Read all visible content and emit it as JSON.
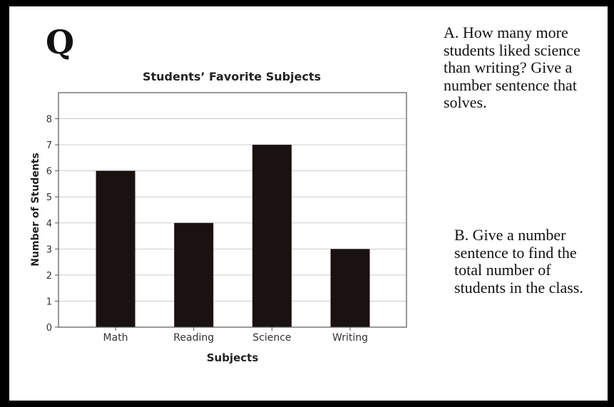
{
  "panel_letter": "Q",
  "question_a": "A.  How many more students liked science than writing?  Give a number sentence that solves.",
  "question_b": "B.  Give a number sentence to find the total number of students in the class.",
  "chart_data": {
    "type": "bar",
    "title": "Students’ Favorite Subjects",
    "xlabel": "Subjects",
    "ylabel": "Number of Students",
    "categories": [
      "Math",
      "Reading",
      "Science",
      "Writing"
    ],
    "values": [
      6,
      4,
      7,
      3
    ],
    "ylim": [
      0,
      8
    ],
    "yticks": [
      0,
      1,
      2,
      3,
      4,
      5,
      6,
      7,
      8
    ],
    "grid": true,
    "bar_color": "#1a1111",
    "grid_color": "#cccccc"
  }
}
